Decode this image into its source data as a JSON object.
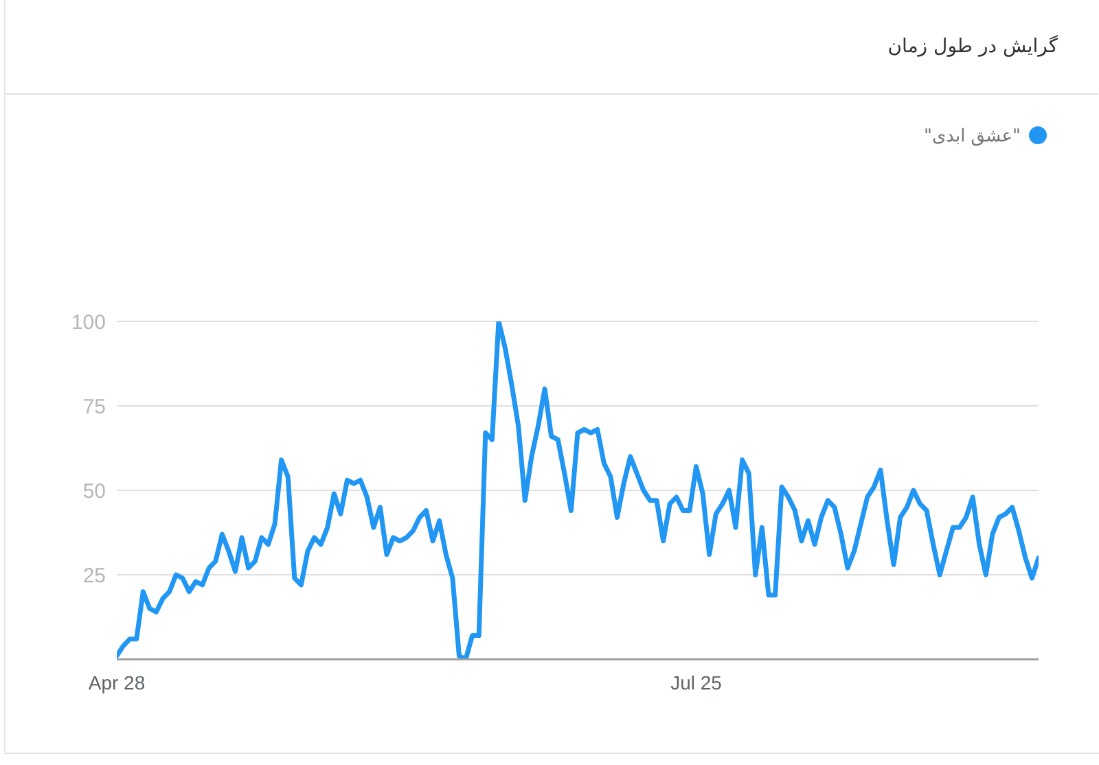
{
  "chart_data": {
    "type": "line",
    "title": "گرایش در طول زمان",
    "x": [
      "--04-28",
      "--04-29",
      "--04-30",
      "--05-01",
      "--05-02",
      "--05-03",
      "--05-04",
      "--05-05",
      "--05-06",
      "--05-07",
      "--05-08",
      "--05-09",
      "--05-10",
      "--05-11",
      "--05-12",
      "--05-13",
      "--05-14",
      "--05-15",
      "--05-16",
      "--05-17",
      "--05-18",
      "--05-19",
      "--05-20",
      "--05-21",
      "--05-22",
      "--05-23",
      "--05-24",
      "--05-25",
      "--05-26",
      "--05-27",
      "--05-28",
      "--05-29",
      "--05-30",
      "--05-31",
      "--06-01",
      "--06-02",
      "--06-03",
      "--06-04",
      "--06-05",
      "--06-06",
      "--06-07",
      "--06-08",
      "--06-09",
      "--06-10",
      "--06-11",
      "--06-12",
      "--06-13",
      "--06-14",
      "--06-15",
      "--06-16",
      "--06-17",
      "--06-18",
      "--06-19",
      "--06-20",
      "--06-21",
      "--06-22",
      "--06-23",
      "--06-24",
      "--06-25",
      "--06-26",
      "--06-27",
      "--06-28",
      "--06-29",
      "--06-30",
      "--07-01",
      "--07-02",
      "--07-03",
      "--07-04",
      "--07-05",
      "--07-06",
      "--07-07",
      "--07-08",
      "--07-09",
      "--07-10",
      "--07-11",
      "--07-12",
      "--07-13",
      "--07-14",
      "--07-15",
      "--07-16",
      "--07-17",
      "--07-18",
      "--07-19",
      "--07-20",
      "--07-21",
      "--07-22",
      "--07-23",
      "--07-24",
      "--07-25",
      "--07-26",
      "--07-27",
      "--07-28",
      "--07-29",
      "--07-30",
      "--07-31",
      "--08-01",
      "--08-02",
      "--08-03",
      "--08-04",
      "--08-05",
      "--08-06",
      "--08-07",
      "--08-08",
      "--08-09",
      "--08-10",
      "--08-11",
      "--08-12",
      "--08-13",
      "--08-14",
      "--08-15",
      "--08-16",
      "--08-17",
      "--08-18",
      "--08-19",
      "--08-20",
      "--08-21",
      "--08-22",
      "--08-23",
      "--08-24",
      "--08-25",
      "--08-26",
      "--08-27",
      "--08-28",
      "--08-29",
      "--08-30",
      "--08-31",
      "--09-01",
      "--09-02",
      "--09-03",
      "--09-04",
      "--09-05",
      "--09-06",
      "--09-07",
      "--09-08",
      "--09-09",
      "--09-10",
      "--09-11",
      "--09-12",
      "--09-13",
      "--09-14",
      "--09-15"
    ],
    "series": [
      {
        "name": "\"عشق ابدی\"",
        "color": "#2196f3",
        "values": [
          1,
          4,
          6,
          6,
          20,
          15,
          14,
          18,
          20,
          25,
          24,
          20,
          23,
          22,
          27,
          29,
          37,
          32,
          26,
          36,
          27,
          29,
          36,
          34,
          40,
          59,
          54,
          24,
          22,
          32,
          36,
          34,
          39,
          49,
          43,
          53,
          52,
          53,
          48,
          39,
          45,
          31,
          36,
          35,
          36,
          38,
          42,
          44,
          35,
          41,
          31,
          24,
          1,
          0,
          7,
          7,
          67,
          65,
          100,
          92,
          81,
          69,
          47,
          60,
          69,
          80,
          66,
          65,
          55,
          44,
          67,
          68,
          67,
          68,
          58,
          54,
          42,
          52,
          60,
          55,
          50,
          47,
          47,
          35,
          46,
          48,
          44,
          44,
          57,
          49,
          31,
          43,
          46,
          50,
          39,
          59,
          55,
          25,
          39,
          19,
          19,
          51,
          48,
          44,
          35,
          41,
          34,
          42,
          47,
          45,
          37,
          27,
          32,
          40,
          48,
          51,
          56,
          41,
          28,
          42,
          45,
          50,
          46,
          44,
          34,
          25,
          32,
          39,
          39,
          42,
          48,
          34,
          25,
          37,
          42,
          43,
          45,
          38,
          30,
          24,
          30
        ]
      }
    ],
    "xlim": [
      "--04-28",
      "--09-15"
    ],
    "xticks": [
      {
        "value": "--04-28",
        "label": "Apr 28"
      },
      {
        "value": "--07-25",
        "label": "Jul 25"
      }
    ],
    "ylim": [
      0,
      100
    ],
    "yticks": [
      25,
      50,
      75,
      100
    ],
    "grid": "y",
    "legend": "top right"
  }
}
